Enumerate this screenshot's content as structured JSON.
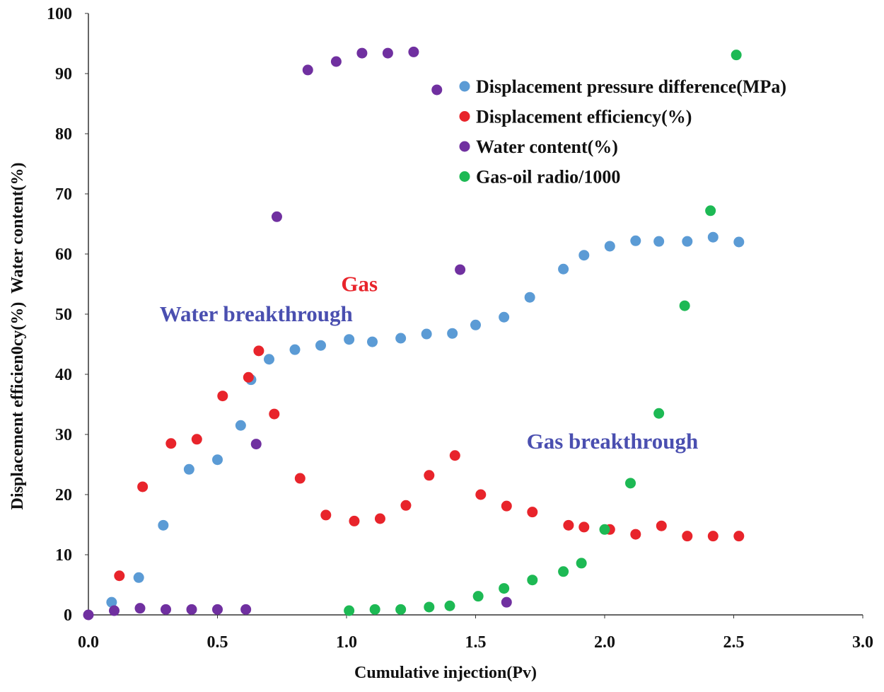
{
  "chart_data": {
    "type": "scatter",
    "xlabel": "Cumulative injection(Pv)",
    "ylabel": "Displacement efficien0cy(%)  Water content(%)",
    "xlim": [
      0,
      3.0
    ],
    "ylim": [
      0,
      100
    ],
    "xticks": [
      "0.0",
      "0.5",
      "1.0",
      "1.5",
      "2.0",
      "2.5",
      "3.0"
    ],
    "yticks": [
      "0",
      "10",
      "20",
      "30",
      "40",
      "50",
      "60",
      "70",
      "80",
      "90",
      "100"
    ],
    "grid": false,
    "legend_position": "top-right",
    "annotations": [
      {
        "text": "Gas",
        "x": 1.05,
        "y": 55,
        "color": "#e8242b"
      },
      {
        "text": "Water  breakthrough",
        "x": 0.65,
        "y": 50,
        "color": "#4a4fb0"
      },
      {
        "text": "Gas breakthrough",
        "x": 2.03,
        "y": 28.8,
        "color": "#4a4fb0"
      }
    ],
    "series": [
      {
        "name": "Displacement pressure difference(MPa)",
        "color": "#5b9bd5",
        "x": [
          0.09,
          0.195,
          0.29,
          0.39,
          0.5,
          0.59,
          0.63,
          0.7,
          0.8,
          0.9,
          1.01,
          1.1,
          1.21,
          1.31,
          1.41,
          1.5,
          1.61,
          1.71,
          1.84,
          1.92,
          2.02,
          2.12,
          2.21,
          2.32,
          2.42,
          2.52
        ],
        "y": [
          2.1,
          6.2,
          14.9,
          24.2,
          25.8,
          31.5,
          39.1,
          42.5,
          44.1,
          44.8,
          45.8,
          45.4,
          46.0,
          46.7,
          46.8,
          48.2,
          49.5,
          52.8,
          57.5,
          59.8,
          61.3,
          62.2,
          62.1,
          62.1,
          62.8,
          62.0
        ]
      },
      {
        "name": "Displacement efficiency(%)",
        "color": "#e8242b",
        "x": [
          0.12,
          0.21,
          0.32,
          0.42,
          0.52,
          0.62,
          0.66,
          0.72,
          0.82,
          0.92,
          1.03,
          1.13,
          1.23,
          1.32,
          1.42,
          1.52,
          1.62,
          1.72,
          1.86,
          1.92,
          2.02,
          2.12,
          2.22,
          2.32,
          2.42,
          2.52
        ],
        "y": [
          6.5,
          21.3,
          28.5,
          29.2,
          36.4,
          39.5,
          43.9,
          33.4,
          22.7,
          16.6,
          15.6,
          16.0,
          18.2,
          23.2,
          26.5,
          20.0,
          18.1,
          17.1,
          14.9,
          14.6,
          14.2,
          13.4,
          14.8,
          13.1,
          13.1,
          13.1
        ]
      },
      {
        "name": "Water content(%)",
        "color": "#7030a0",
        "x": [
          0,
          0.1,
          0.2,
          0.3,
          0.4,
          0.5,
          0.61,
          0.65,
          0.73,
          0.85,
          0.96,
          1.06,
          1.16,
          1.26,
          1.35,
          1.44,
          1.62
        ],
        "y": [
          0,
          0.7,
          1.1,
          0.9,
          0.9,
          0.9,
          0.9,
          28.4,
          66.2,
          90.6,
          92.0,
          93.4,
          93.4,
          93.6,
          87.3,
          57.4,
          2.1
        ]
      },
      {
        "name": "Gas-oil radio/1000",
        "color": "#1db954",
        "x": [
          1.01,
          1.11,
          1.21,
          1.32,
          1.4,
          1.51,
          1.61,
          1.72,
          1.84,
          1.91,
          2.0,
          2.1,
          2.21,
          2.31,
          2.41,
          2.51
        ],
        "y": [
          0.7,
          0.9,
          0.9,
          1.3,
          1.5,
          3.1,
          4.4,
          5.8,
          7.2,
          8.6,
          14.2,
          21.9,
          33.5,
          51.4,
          67.2,
          93.1
        ]
      }
    ]
  }
}
